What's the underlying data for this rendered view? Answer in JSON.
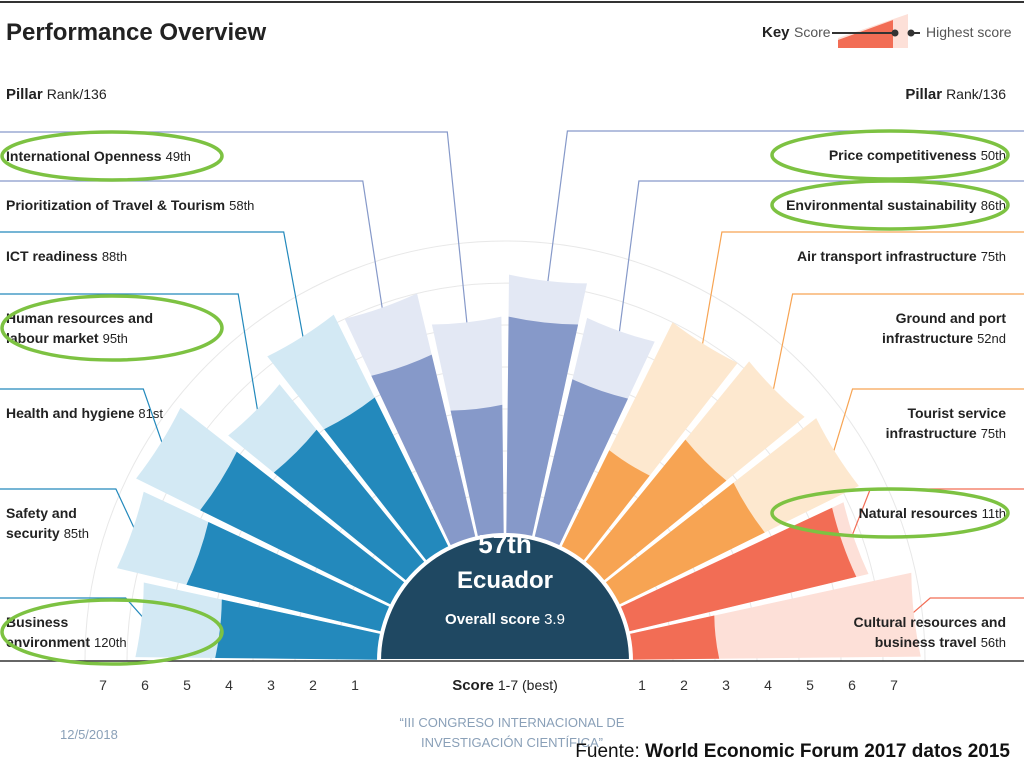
{
  "header": {
    "title": "Performance Overview",
    "key_label": "Key",
    "score_label": "Score",
    "highest_label": "Highest score"
  },
  "left_header": {
    "name": "Pillar",
    "unit": "Rank/136"
  },
  "right_header": {
    "name": "Pillar",
    "unit": "Rank/136"
  },
  "center": {
    "rank": "57th",
    "country": "Ecuador",
    "overall_label": "Overall score",
    "overall_value": "3.9"
  },
  "axis": {
    "label": "Score",
    "unit": "1-7 (best)"
  },
  "footer": {
    "date": "12/5/2018",
    "event_line1": "“III CONGRESO INTERNACIONAL DE",
    "event_line2": "INVESTIGACIÓN CIENTÍFICA”",
    "source_prefix": "Fuente: ",
    "source_text": "World Economic Forum 2017 datos 2015"
  },
  "colors": {
    "blue_dark": "#2389bc",
    "blue_light": "#d3e9f4",
    "purple_dark": "#8699c9",
    "purple_light": "#e3e8f4",
    "orange_dark": "#f7a453",
    "orange_light": "#fde8cf",
    "red_dark": "#f26d55",
    "red_light": "#fde0d8",
    "center_fill": "#1f4862",
    "highlight": "#7dc242"
  },
  "chart_data": {
    "type": "radial-bar",
    "title": "Performance Overview",
    "overall": {
      "country": "Ecuador",
      "rank": "57th",
      "score": 3.9
    },
    "scale": [
      1,
      7
    ],
    "pillars": [
      {
        "name": "Business environment",
        "rank": "120th",
        "score": 3.9,
        "highest": 5.8,
        "group": "blue",
        "side": "left",
        "lines": [
          "Business",
          "environment"
        ],
        "highlighted": true
      },
      {
        "name": "Safety and security",
        "rank": "85th",
        "score": 4.8,
        "highest": 6.5,
        "group": "blue",
        "side": "left",
        "lines": [
          "Safety and",
          "security"
        ],
        "highlighted": false
      },
      {
        "name": "Health and hygiene",
        "rank": "81st",
        "score": 5.1,
        "highest": 6.8,
        "group": "blue",
        "side": "left",
        "lines": [
          "Health and hygiene"
        ],
        "highlighted": false
      },
      {
        "name": "Human resources and labour market",
        "rank": "95th",
        "score": 4.1,
        "highest": 5.5,
        "group": "blue",
        "side": "left",
        "lines": [
          "Human resources and",
          "labour market"
        ],
        "highlighted": true
      },
      {
        "name": "ICT readiness",
        "rank": "88th",
        "score": 4.0,
        "highest": 6.2,
        "group": "blue",
        "side": "left",
        "lines": [
          "ICT readiness"
        ],
        "highlighted": false
      },
      {
        "name": "Prioritization of Travel & Tourism",
        "rank": "58th",
        "score": 4.5,
        "highest": 6.0,
        "group": "purple",
        "side": "left",
        "lines": [
          "Prioritization of Travel & Tourism"
        ],
        "highlighted": false
      },
      {
        "name": "International Openness",
        "rank": "49th",
        "score": 3.1,
        "highest": 5.2,
        "group": "purple",
        "side": "left",
        "lines": [
          "International Openness"
        ],
        "highlighted": true
      },
      {
        "name": "Price competitiveness",
        "rank": "50th",
        "score": 5.2,
        "highest": 6.2,
        "group": "purple",
        "side": "right",
        "lines": [
          "Price competitiveness"
        ],
        "highlighted": true
      },
      {
        "name": "Environmental sustainability",
        "rank": "86th",
        "score": 3.9,
        "highest": 5.4,
        "group": "purple",
        "side": "right",
        "lines": [
          "Environmental sustainability"
        ],
        "highlighted": true
      },
      {
        "name": "Air transport infrastructure",
        "rank": "75th",
        "score": 2.6,
        "highest": 6.0,
        "group": "orange",
        "side": "right",
        "lines": [
          "Air transport infrastructure"
        ],
        "highlighted": false
      },
      {
        "name": "Ground and port infrastructure",
        "rank": "52nd",
        "score": 3.8,
        "highest": 6.2,
        "group": "orange",
        "side": "right",
        "lines": [
          "Ground and port",
          "infrastructure"
        ],
        "highlighted": false
      },
      {
        "name": "Tourist service infrastructure",
        "rank": "75th",
        "score": 3.9,
        "highest": 6.4,
        "group": "orange",
        "side": "right",
        "lines": [
          "Tourist service",
          "infrastructure"
        ],
        "highlighted": false
      },
      {
        "name": "Natural resources",
        "rank": "11th",
        "score": 5.6,
        "highest": 5.9,
        "group": "red",
        "side": "right",
        "lines": [
          "Natural resources"
        ],
        "highlighted": true
      },
      {
        "name": "Cultural resources and business travel",
        "rank": "56th",
        "score": 2.1,
        "highest": 6.9,
        "group": "red",
        "side": "right",
        "lines": [
          "Cultural resources and",
          "business travel"
        ],
        "highlighted": false
      }
    ]
  }
}
